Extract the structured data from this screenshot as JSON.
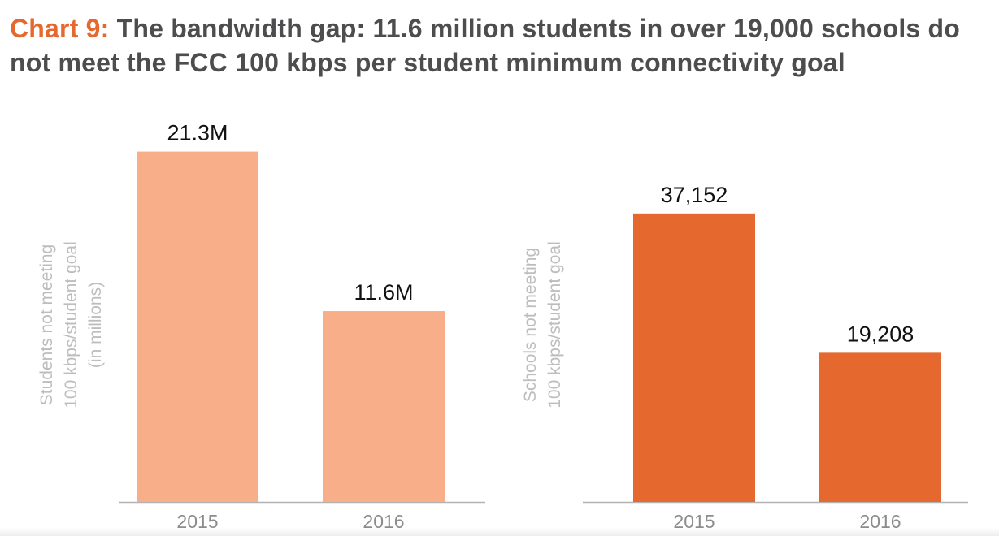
{
  "title": {
    "lead": "Chart 9:",
    "rest": "The bandwidth gap: 11.6 million students in over 19,000 schools do not meet the FCC 100 kbps per student minimum connectivity goal"
  },
  "colors": {
    "title_lead": "#e5692f",
    "title_text": "#4d4d4f",
    "students_bar": "#f9ae8a",
    "schools_bar": "#e5692f",
    "axis_title": "#bdbdbd",
    "tick_label": "#8c8c8c",
    "axis_line": "#b3b3b3"
  },
  "chart_data": [
    {
      "type": "bar",
      "categories": [
        "2015",
        "2016"
      ],
      "values": [
        21.3,
        11.6
      ],
      "data_labels": [
        "21.3M",
        "11.6M"
      ],
      "ylabel": [
        "Students not meeting",
        "100 kbps/student goal",
        "(in millions)"
      ],
      "ylim": [
        0,
        23.6
      ],
      "grid": false,
      "color": "#f9ae8a"
    },
    {
      "type": "bar",
      "categories": [
        "2015",
        "2016"
      ],
      "values": [
        37152,
        19208
      ],
      "data_labels": [
        "37,152",
        "19,208"
      ],
      "ylabel": [
        "Schools not meeting",
        "100 kbps/student goal"
      ],
      "ylim": [
        0,
        50000
      ],
      "grid": false,
      "color": "#e5692f"
    }
  ]
}
